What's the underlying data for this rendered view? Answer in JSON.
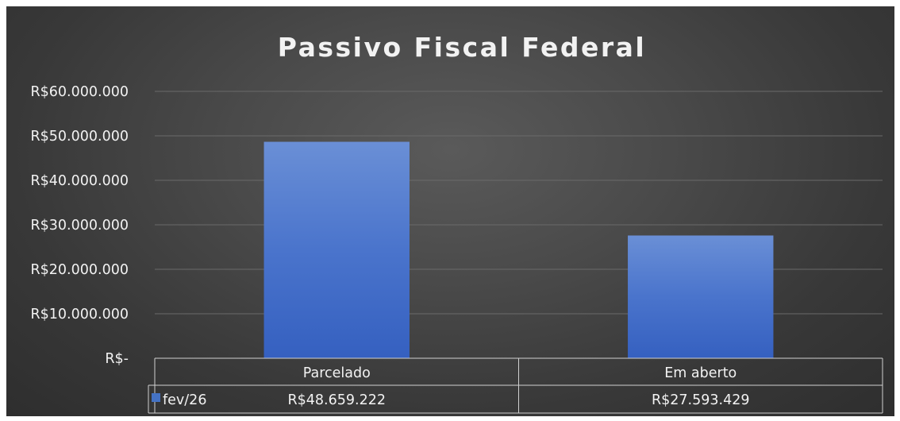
{
  "chart_data": {
    "type": "bar",
    "title": "Passivo Fiscal Federal",
    "categories": [
      "Parcelado",
      "Em aberto"
    ],
    "series": [
      {
        "name": "fev/26",
        "values": [
          48659222,
          27593429
        ],
        "value_labels": [
          "R$48.659.222",
          "R$27.593.429"
        ]
      }
    ],
    "ylim": [
      0,
      60000000
    ],
    "y_ticks": [
      0,
      10000000,
      20000000,
      30000000,
      40000000,
      50000000,
      60000000
    ],
    "y_tick_labels": [
      "R$-",
      "R$10.000.000",
      "R$20.000.000",
      "R$30.000.000",
      "R$40.000.000",
      "R$50.000.000",
      "R$60.000.000"
    ],
    "grid": true,
    "data_table": true,
    "legend": "in data table",
    "colors": {
      "bar": "#4472c4",
      "bar_light": "#6a90d8",
      "background": "#404040",
      "text": "#f2f2f2",
      "grid": "#6a6a6a",
      "table_border": "#d0d0d0"
    }
  }
}
